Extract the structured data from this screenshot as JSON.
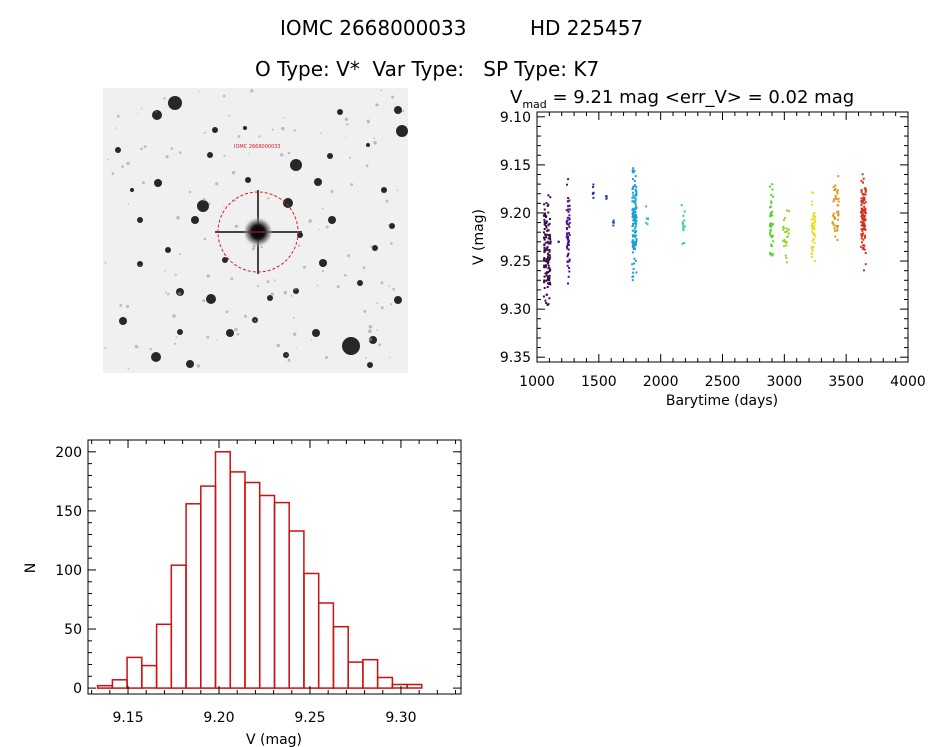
{
  "header": {
    "line1_left": "IOMC 2668000033",
    "line1_right": "HD 225457",
    "line2": "O Type: V*  Var Type:   SP Type: K7"
  },
  "colors": {
    "frame": "#000000",
    "histogram": "#cc1111",
    "aperture_circle": "#d42020",
    "background": "#ffffff",
    "image_background": "#f0f0f0"
  },
  "sky_image": {
    "small_label": "IOMC 2668000033"
  },
  "lightcurve_title": {
    "v": "V",
    "sub": "mad",
    "rest": " = 9.21 mag <err_V> = 0.02 mag"
  },
  "chart_data": [
    {
      "type": "scatter",
      "xlabel": "Barytime (days)",
      "ylabel": "V (mag)",
      "xlim": [
        1000,
        4000
      ],
      "ylim": [
        9.355,
        9.095
      ],
      "y_inverted": true,
      "x_ticks": [
        1000,
        1500,
        2000,
        2500,
        3000,
        3500,
        4000
      ],
      "y_ticks": [
        9.1,
        9.15,
        9.2,
        9.25,
        9.3,
        9.35
      ],
      "y_tick_labels": [
        "9.10",
        "9.15",
        "9.20",
        "9.25",
        "9.30",
        "9.35"
      ],
      "grid": false,
      "clusters": [
        {
          "x_min": 1055,
          "x_max": 1110,
          "y_min": 9.17,
          "y_max": 9.31,
          "color": "#3b0a4a",
          "count": 130
        },
        {
          "x_min": 1240,
          "x_max": 1265,
          "y_min": 9.15,
          "y_max": 9.285,
          "color": "#50118a",
          "count": 60
        },
        {
          "x_min": 1170,
          "x_max": 1180,
          "y_min": 9.23,
          "y_max": 9.23,
          "color": "#28148c",
          "count": 2
        },
        {
          "x_min": 1440,
          "x_max": 1460,
          "y_min": 9.155,
          "y_max": 9.195,
          "color": "#1e2aa8",
          "count": 6
        },
        {
          "x_min": 1550,
          "x_max": 1565,
          "y_min": 9.18,
          "y_max": 9.19,
          "color": "#1e3cb4",
          "count": 4
        },
        {
          "x_min": 1610,
          "x_max": 1625,
          "y_min": 9.205,
          "y_max": 9.215,
          "color": "#1e50c8",
          "count": 4
        },
        {
          "x_min": 1770,
          "x_max": 1805,
          "y_min": 9.13,
          "y_max": 9.28,
          "color": "#1aa0d8",
          "count": 130
        },
        {
          "x_min": 1880,
          "x_max": 1900,
          "y_min": 9.185,
          "y_max": 9.225,
          "color": "#28c8c8",
          "count": 6
        },
        {
          "x_min": 2170,
          "x_max": 2200,
          "y_min": 9.18,
          "y_max": 9.245,
          "color": "#28d2a0",
          "count": 12
        },
        {
          "x_min": 2880,
          "x_max": 2910,
          "y_min": 9.155,
          "y_max": 9.265,
          "color": "#50d22a",
          "count": 40
        },
        {
          "x_min": 2990,
          "x_max": 3040,
          "y_min": 9.185,
          "y_max": 9.26,
          "color": "#96d228",
          "count": 26
        },
        {
          "x_min": 3220,
          "x_max": 3250,
          "y_min": 9.16,
          "y_max": 9.28,
          "color": "#e6e028",
          "count": 48
        },
        {
          "x_min": 3390,
          "x_max": 3440,
          "y_min": 9.14,
          "y_max": 9.245,
          "color": "#e09a1e",
          "count": 44
        },
        {
          "x_min": 3620,
          "x_max": 3660,
          "y_min": 9.145,
          "y_max": 9.265,
          "color": "#d2321e",
          "count": 100
        }
      ]
    },
    {
      "type": "bar",
      "xlabel": "V (mag)",
      "ylabel": "N",
      "xlim": [
        9.128,
        9.333
      ],
      "ylim": [
        -5,
        210
      ],
      "x_ticks": [
        9.15,
        9.2,
        9.25,
        9.3
      ],
      "x_tick_labels": [
        "9.15",
        "9.20",
        "9.25",
        "9.30"
      ],
      "y_ticks": [
        0,
        50,
        100,
        150,
        200
      ],
      "bin_width": 0.0081,
      "bin_starts": [
        9.1333,
        9.1414,
        9.1495,
        9.1576,
        9.1657,
        9.1738,
        9.1819,
        9.19,
        9.1981,
        9.2062,
        9.2143,
        9.2224,
        9.2305,
        9.2386,
        9.2467,
        9.2548,
        9.2629,
        9.271,
        9.2791,
        9.2872,
        9.2953,
        9.3034,
        9.3115
      ],
      "values": [
        2,
        7,
        26,
        19,
        54,
        104,
        156,
        171,
        200,
        183,
        174,
        163,
        157,
        133,
        97,
        72,
        52,
        22,
        24,
        9,
        3,
        3,
        0
      ],
      "grid": false
    }
  ]
}
